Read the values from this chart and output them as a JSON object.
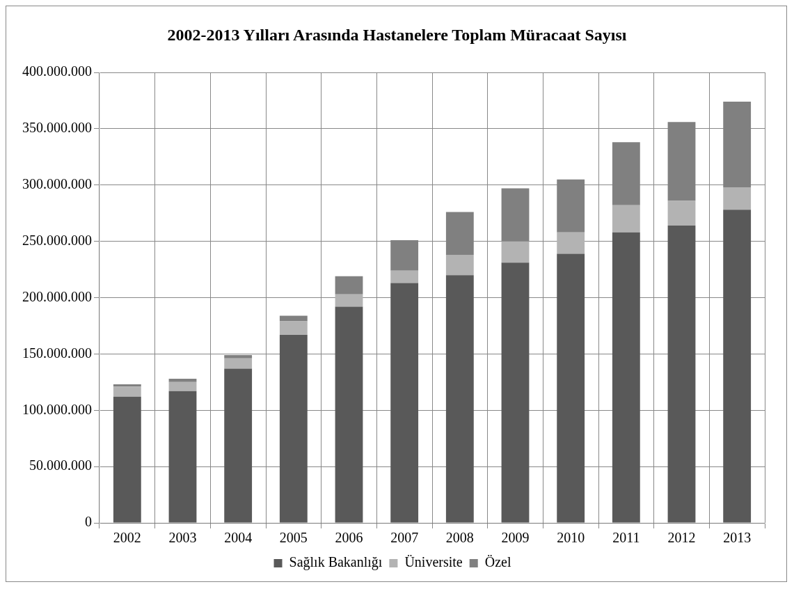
{
  "chart_data": {
    "type": "bar",
    "title": "2002-2013 Yılları Arasında Hastanelere Toplam Müracaat Sayısı",
    "categories": [
      "2002",
      "2003",
      "2004",
      "2005",
      "2006",
      "2007",
      "2008",
      "2009",
      "2010",
      "2011",
      "2012",
      "2013"
    ],
    "stacked": true,
    "grid": true,
    "legend": "bottom",
    "ylim": [
      0,
      400000000
    ],
    "yticks": [
      {
        "value": 0,
        "label": "0"
      },
      {
        "value": 50000000,
        "label": "50.000.000"
      },
      {
        "value": 100000000,
        "label": "100.000.000"
      },
      {
        "value": 150000000,
        "label": "150.000.000"
      },
      {
        "value": 200000000,
        "label": "200.000.000"
      },
      {
        "value": 250000000,
        "label": "250.000.000"
      },
      {
        "value": 300000000,
        "label": "300.000.000"
      },
      {
        "value": 350000000,
        "label": "350.000.000"
      },
      {
        "value": 400000000,
        "label": "400.000.000"
      }
    ],
    "series": [
      {
        "name": "Sağlık Bakanlığı",
        "color": "#595959",
        "values": [
          112000000,
          117000000,
          137000000,
          167000000,
          192000000,
          213000000,
          220000000,
          231000000,
          239000000,
          258000000,
          264000000,
          278000000
        ]
      },
      {
        "name": "Üniversite",
        "color": "#b3b3b3",
        "values": [
          9000000,
          8000000,
          9000000,
          12000000,
          11000000,
          11000000,
          18000000,
          19000000,
          19000000,
          24000000,
          22000000,
          20000000
        ]
      },
      {
        "name": "Özel",
        "color": "#808080",
        "values": [
          2000000,
          3000000,
          3000000,
          5000000,
          16000000,
          27000000,
          38000000,
          47000000,
          47000000,
          56000000,
          70000000,
          76000000
        ]
      }
    ]
  }
}
